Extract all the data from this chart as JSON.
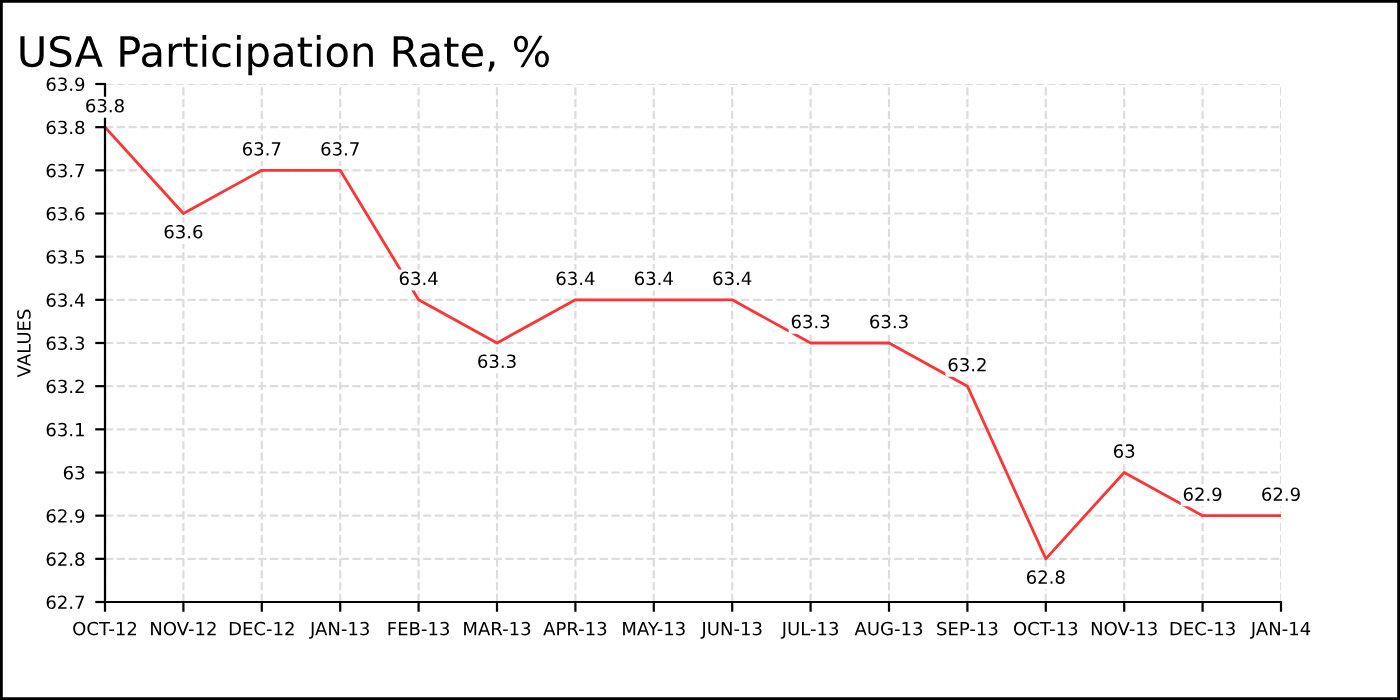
{
  "chart_data": {
    "type": "line",
    "title": "USA Participation Rate, %",
    "ylabel": "VALUES",
    "categories": [
      "OCT-12",
      "NOV-12",
      "DEC-12",
      "JAN-13",
      "FEB-13",
      "MAR-13",
      "APR-13",
      "MAY-13",
      "JUN-13",
      "JUL-13",
      "AUG-13",
      "SEP-13",
      "OCT-13",
      "NOV-13",
      "DEC-13",
      "JAN-14"
    ],
    "series": [
      {
        "color": "#ff3333",
        "values": [
          63.8,
          63.6,
          63.7,
          63.7,
          63.4,
          63.3,
          63.4,
          63.4,
          63.4,
          63.3,
          63.3,
          63.2,
          62.8,
          63,
          62.9,
          62.9
        ]
      }
    ],
    "ylim": [
      62.7,
      63.9
    ],
    "yticks": [
      62.7,
      62.8,
      62.9,
      63,
      63.1,
      63.2,
      63.3,
      63.4,
      63.5,
      63.6,
      63.7,
      63.8,
      63.9
    ],
    "grid": true,
    "data_labels": true,
    "marker": "none",
    "line_style": "solid"
  }
}
